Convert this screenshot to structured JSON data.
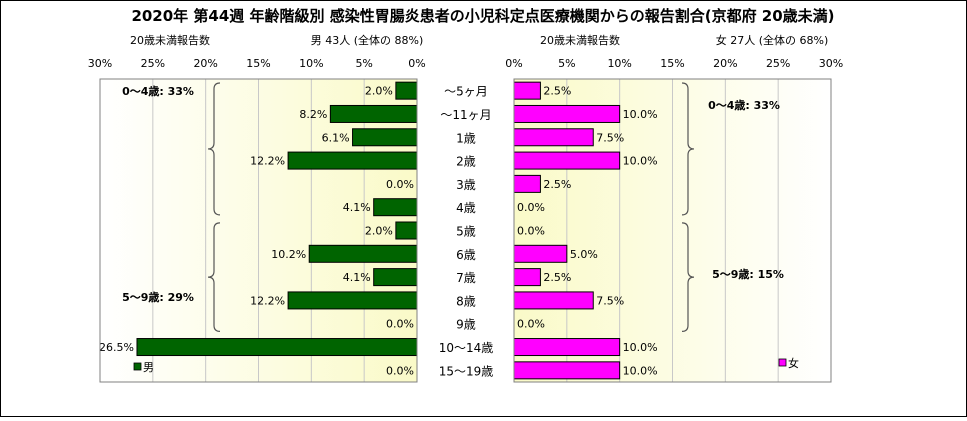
{
  "title": "2020年 第44週 年齢階級別 感染性胃腸炎患者の小児科定点医療機関からの報告割合(京都府 20歳未満)",
  "categories": [
    "～5ヶ月",
    "～11ヶ月",
    "1歳",
    "2歳",
    "3歳",
    "4歳",
    "5歳",
    "6歳",
    "7歳",
    "8歳",
    "9歳",
    "10～14歳",
    "15～19歳"
  ],
  "male_panel": {
    "subtitle_left": "20歳未満報告数",
    "subtitle_right": "男  43人 (全体の  88%)",
    "legend": "男",
    "ticks": [
      "30%",
      "25%",
      "20%",
      "15%",
      "10%",
      "5%",
      "0%"
    ],
    "brackets": [
      {
        "label": "0～4歳: 33%"
      },
      {
        "label": "5～9歳: 29%"
      }
    ]
  },
  "female_panel": {
    "subtitle_left": "20歳未満報告数",
    "subtitle_right": "女  27人 (全体の  68%)",
    "legend": "女",
    "ticks": [
      "0%",
      "5%",
      "10%",
      "15%",
      "20%",
      "25%",
      "30%"
    ],
    "brackets": [
      {
        "label": "0～4歳: 33%"
      },
      {
        "label": "5～9歳: 15%"
      }
    ]
  },
  "colors": {
    "male": "#006400",
    "female": "#ff00ff",
    "panel_bg": "#ffffe0"
  },
  "chart_data": [
    {
      "type": "bar",
      "orientation": "horizontal",
      "direction": "right-to-left",
      "title": "男  43人 (全体の  88%)",
      "categories": [
        "～5ヶ月",
        "～11ヶ月",
        "1歳",
        "2歳",
        "3歳",
        "4歳",
        "5歳",
        "6歳",
        "7歳",
        "8歳",
        "9歳",
        "10～14歳",
        "15～19歳"
      ],
      "series": [
        {
          "name": "男",
          "values": [
            2.0,
            8.2,
            6.1,
            12.2,
            0.0,
            4.1,
            2.0,
            10.2,
            4.1,
            12.2,
            0.0,
            26.5,
            0.0
          ]
        }
      ],
      "data_labels": [
        "2.0%",
        "8.2%",
        "6.1%",
        "12.2%",
        "0.0%",
        "4.1%",
        "2.0%",
        "10.2%",
        "4.1%",
        "12.2%",
        "0.0%",
        "26.5%",
        "0.0%"
      ],
      "xlim": [
        0,
        30
      ],
      "unit": "%",
      "grid": true,
      "legend_position": "bottom-left"
    },
    {
      "type": "bar",
      "orientation": "horizontal",
      "direction": "left-to-right",
      "title": "女  27人 (全体の  68%)",
      "categories": [
        "～5ヶ月",
        "～11ヶ月",
        "1歳",
        "2歳",
        "3歳",
        "4歳",
        "5歳",
        "6歳",
        "7歳",
        "8歳",
        "9歳",
        "10～14歳",
        "15～19歳"
      ],
      "series": [
        {
          "name": "女",
          "values": [
            2.5,
            10.0,
            7.5,
            10.0,
            2.5,
            0.0,
            0.0,
            5.0,
            2.5,
            7.5,
            0.0,
            10.0,
            10.0
          ]
        }
      ],
      "data_labels": [
        "2.5%",
        "10.0%",
        "7.5%",
        "10.0%",
        "2.5%",
        "0.0%",
        "0.0%",
        "5.0%",
        "2.5%",
        "7.5%",
        "0.0%",
        "10.0%",
        "10.0%"
      ],
      "xlim": [
        0,
        30
      ],
      "unit": "%",
      "grid": true,
      "legend_position": "bottom-right"
    }
  ]
}
